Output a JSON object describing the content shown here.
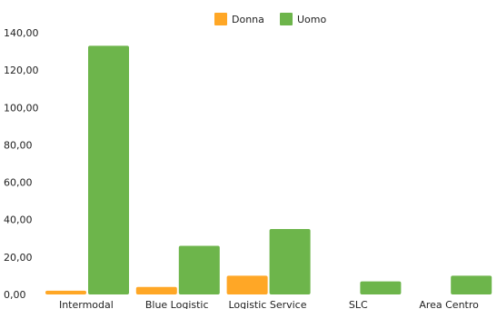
{
  "chart_data": {
    "type": "bar",
    "categories": [
      "Intermodal",
      "Blue Logistic",
      "Logistic Service",
      "SLC",
      "Area Centro"
    ],
    "series": [
      {
        "name": "Donna",
        "color": "#FFA726",
        "values": [
          2,
          4,
          10,
          0,
          0
        ]
      },
      {
        "name": "Uomo",
        "color": "#6DB54B",
        "values": [
          133,
          26,
          35,
          7,
          10
        ]
      }
    ],
    "ylim": [
      0,
      140
    ],
    "yticks": [
      "0,00",
      "20,00",
      "40,00",
      "60,00",
      "80,00",
      "100,00",
      "120,00",
      "140,00"
    ],
    "ytick_values": [
      0,
      20,
      40,
      60,
      80,
      100,
      120,
      140
    ],
    "grid": false,
    "legend_position": "top-center",
    "title": "",
    "xlabel": "",
    "ylabel": ""
  }
}
